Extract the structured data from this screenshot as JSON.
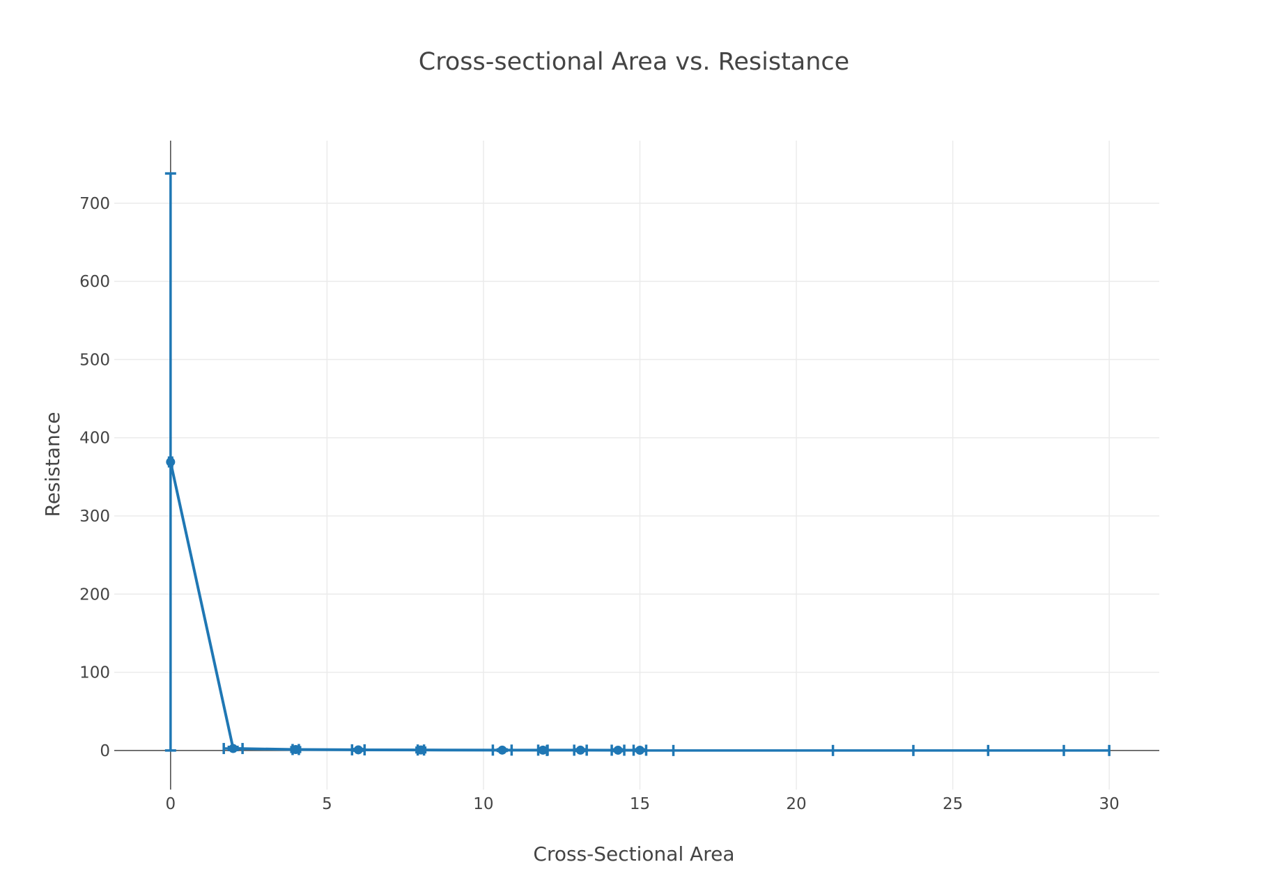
{
  "chart_data": {
    "type": "scatter",
    "mode": "lines+markers",
    "title": "Cross-sectional Area vs. Resistance",
    "xlabel": "Cross-Sectional Area",
    "ylabel": "Resistance",
    "xlim": [
      -1.8,
      31.6
    ],
    "ylim": [
      -50,
      780
    ],
    "xticks": [
      0,
      5,
      10,
      15,
      20,
      25,
      30
    ],
    "yticks": [
      0,
      100,
      200,
      300,
      400,
      500,
      600,
      700
    ],
    "grid": true,
    "legend": false,
    "color": "#1f77b4",
    "series": [
      {
        "x": [
          0,
          2,
          4,
          6,
          8,
          10.6,
          11.9,
          13.1,
          14.3,
          15
        ],
        "y": [
          369,
          2.5,
          1.2,
          0.8,
          0.6,
          0.47,
          0.42,
          0.38,
          0.35,
          0.33
        ],
        "error_y": [
          369,
          2,
          3,
          1,
          3,
          1,
          1,
          1,
          1,
          1
        ],
        "error_x": [
          0.05,
          0.3,
          0.1,
          0.2,
          0.1,
          0.3,
          0.15,
          0.2,
          0.2,
          0.2
        ]
      }
    ],
    "error_x_caps": [
      12.03,
      16.07,
      21.17,
      23.74,
      26.13,
      28.55,
      30
    ]
  }
}
